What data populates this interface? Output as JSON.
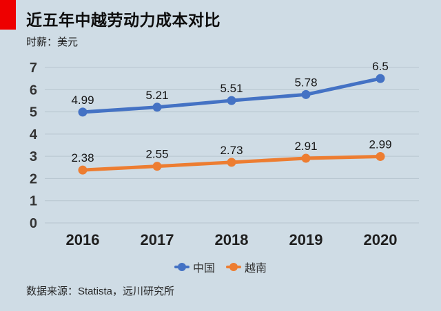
{
  "page": {
    "background_color": "#cfdce5",
    "accent_color": "#ee0000"
  },
  "header": {
    "title": "近五年中越劳动力成本对比",
    "subtitle": "时薪：美元"
  },
  "chart_data": {
    "type": "line",
    "categories": [
      "2016",
      "2017",
      "2018",
      "2019",
      "2020"
    ],
    "series": [
      {
        "name": "中国",
        "color": "#4472c4",
        "values": [
          4.99,
          5.21,
          5.51,
          5.78,
          6.5
        ]
      },
      {
        "name": "越南",
        "color": "#ed7d31",
        "values": [
          2.38,
          2.55,
          2.73,
          2.91,
          2.99
        ]
      }
    ],
    "title": "近五年中越劳动力成本对比",
    "xlabel": "",
    "ylabel": "时薪：美元",
    "ylim": [
      0,
      7
    ],
    "ytick_step": 1,
    "grid": true,
    "data_labels": true,
    "legend_position": "bottom"
  },
  "footer": {
    "source": "数据来源：Statista，远川研究所"
  }
}
